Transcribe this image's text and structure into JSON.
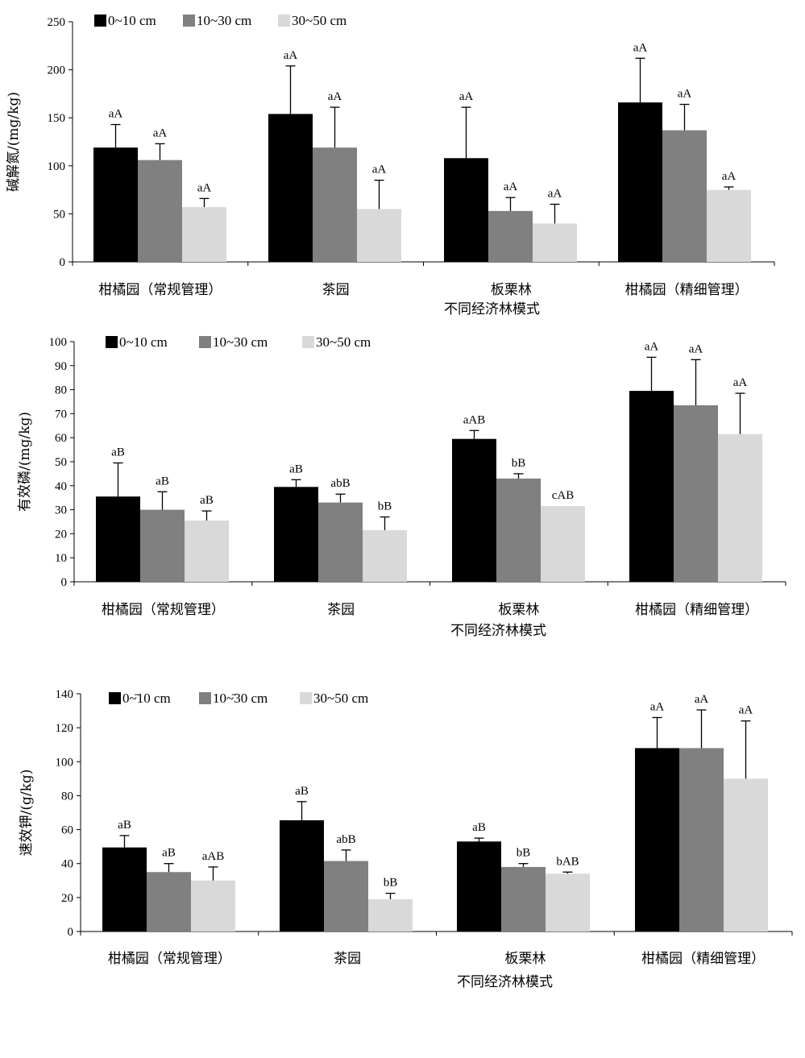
{
  "colors": {
    "series": [
      "#000000",
      "#808080",
      "#d9d9d9"
    ],
    "axis": "#000000"
  },
  "chart_data": [
    {
      "type": "bar",
      "ylabel": "碱解氮/(mg/kg)",
      "xlabel": "不同经济林模式",
      "ylim": [
        0,
        250
      ],
      "ytick_step": 50,
      "grid": false,
      "legend_position": "top-left",
      "categories": [
        "柑橘园（常规管理）",
        "茶园",
        "板栗林",
        "柑橘园（精细管理）"
      ],
      "series": [
        {
          "name": "0~10 cm",
          "values": [
            119,
            154,
            108,
            166
          ],
          "errors": [
            24,
            50,
            53,
            46
          ],
          "labels": [
            "aA",
            "aA",
            "aA",
            "aA"
          ]
        },
        {
          "name": "10~30 cm",
          "values": [
            106,
            119,
            53,
            137
          ],
          "errors": [
            17,
            42,
            14,
            27
          ],
          "labels": [
            "aA",
            "aA",
            "aA",
            "aA"
          ]
        },
        {
          "name": "30~50 cm",
          "values": [
            57,
            55,
            40,
            75
          ],
          "errors": [
            9,
            30,
            20,
            3
          ],
          "labels": [
            "aA",
            "aA",
            "aA",
            "aA"
          ]
        }
      ]
    },
    {
      "type": "bar",
      "ylabel": "有效磷/(mg/kg)",
      "xlabel": "不同经济林模式",
      "ylim": [
        0,
        100
      ],
      "ytick_step": 10,
      "grid": false,
      "legend_position": "top-left",
      "categories": [
        "柑橘园（常规管理）",
        "茶园",
        "板栗林",
        "柑橘园（精细管理）"
      ],
      "series": [
        {
          "name": "0~10 cm",
          "values": [
            35.5,
            39.5,
            59.5,
            79.5
          ],
          "errors": [
            14,
            3,
            3.5,
            14
          ],
          "labels": [
            "aB",
            "aB",
            "aAB",
            "aA"
          ]
        },
        {
          "name": "10~30 cm",
          "values": [
            30,
            33,
            43,
            73.5
          ],
          "errors": [
            7.5,
            3.5,
            2,
            19
          ],
          "labels": [
            "aB",
            "abB",
            "bB",
            "aA"
          ]
        },
        {
          "name": "30~50 cm",
          "values": [
            25.5,
            21.5,
            31.5,
            61.5
          ],
          "errors": [
            4,
            5.5,
            0,
            17
          ],
          "labels": [
            "aB",
            "bB",
            "cAB",
            "aA"
          ]
        }
      ]
    },
    {
      "type": "bar",
      "ylabel": "速效钾/(g/kg)",
      "xlabel": "不同经济林模式",
      "ylim": [
        0,
        140
      ],
      "ytick_step": 20,
      "grid": false,
      "legend_position": "top-left",
      "categories": [
        "柑橘园（常规管理）",
        "茶园",
        "板栗林",
        "柑橘园（精细管理）"
      ],
      "series": [
        {
          "name": "0~̄10 cm",
          "values": [
            49.5,
            65.5,
            53,
            108
          ],
          "errors": [
            7,
            11,
            2,
            18
          ],
          "labels": [
            "aB",
            "aB",
            "aB",
            "aA"
          ]
        },
        {
          "name": "10~̄30 cm",
          "values": [
            35,
            41.5,
            38,
            108
          ],
          "errors": [
            5,
            6.5,
            2,
            22.5
          ],
          "labels": [
            "aB",
            "abB",
            "bB",
            "aA"
          ]
        },
        {
          "name": "30~50 cm",
          "values": [
            30,
            19,
            34,
            90
          ],
          "errors": [
            8,
            3.5,
            1,
            34
          ],
          "labels": [
            "aAB",
            "bB",
            "bAB",
            "aA"
          ]
        }
      ]
    }
  ]
}
